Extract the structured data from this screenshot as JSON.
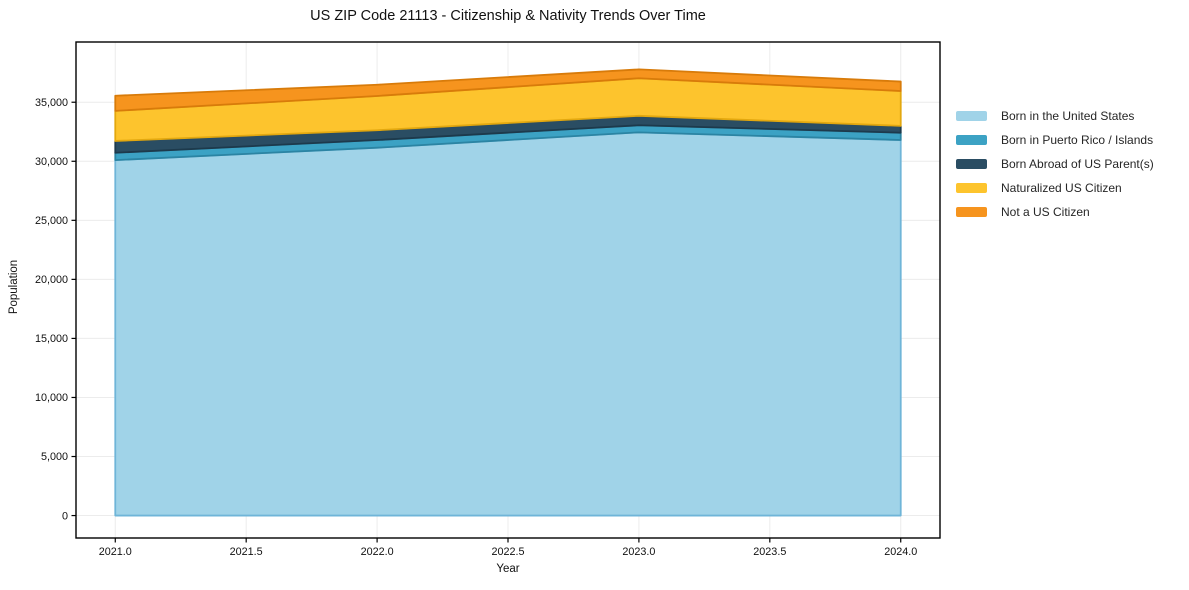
{
  "chart_data": {
    "type": "area",
    "stacked": true,
    "title": "US ZIP Code 21113 - Citizenship & Nativity Trends Over Time",
    "xlabel": "Year",
    "ylabel": "Population",
    "x": [
      2021,
      2022,
      2023,
      2024
    ],
    "series": [
      {
        "name": "Born in the United States",
        "values": [
          30100,
          31150,
          32450,
          31800
        ],
        "color": "#a0d3e8",
        "edge": "#6fb5d8"
      },
      {
        "name": "Born in Puerto Rico / Islands",
        "values": [
          620,
          650,
          600,
          620
        ],
        "color": "#3ca2c4",
        "edge": "#2b84a3"
      },
      {
        "name": "Born Abroad of US Parent(s)",
        "values": [
          1000,
          830,
          800,
          580
        ],
        "color": "#2a4d63",
        "edge": "#1d3a4c"
      },
      {
        "name": "Naturalized US Citizen",
        "values": [
          2550,
          2900,
          3180,
          2950
        ],
        "color": "#fdc42d",
        "edge": "#e3a80f"
      },
      {
        "name": "Not a US Citizen",
        "values": [
          1280,
          950,
          750,
          800
        ],
        "color": "#f6941e",
        "edge": "#d87b0a"
      }
    ],
    "xlim": [
      2020.85,
      2024.15
    ],
    "ylim": [
      -1900,
      40100
    ],
    "xticks": [
      2021.0,
      2021.5,
      2022.0,
      2022.5,
      2023.0,
      2023.5,
      2024.0
    ],
    "xtick_labels": [
      "2021.0",
      "2021.5",
      "2022.0",
      "2022.5",
      "2023.0",
      "2023.5",
      "2024.0"
    ],
    "yticks": [
      0,
      5000,
      10000,
      15000,
      20000,
      25000,
      30000,
      35000
    ],
    "ytick_labels": [
      "0",
      "5,000",
      "10,000",
      "15,000",
      "20,000",
      "25,000",
      "30,000",
      "35,000"
    ],
    "grid": true,
    "gridline_color": "#ececec",
    "spine_color": "#000000",
    "legend_position": "right-outside"
  }
}
